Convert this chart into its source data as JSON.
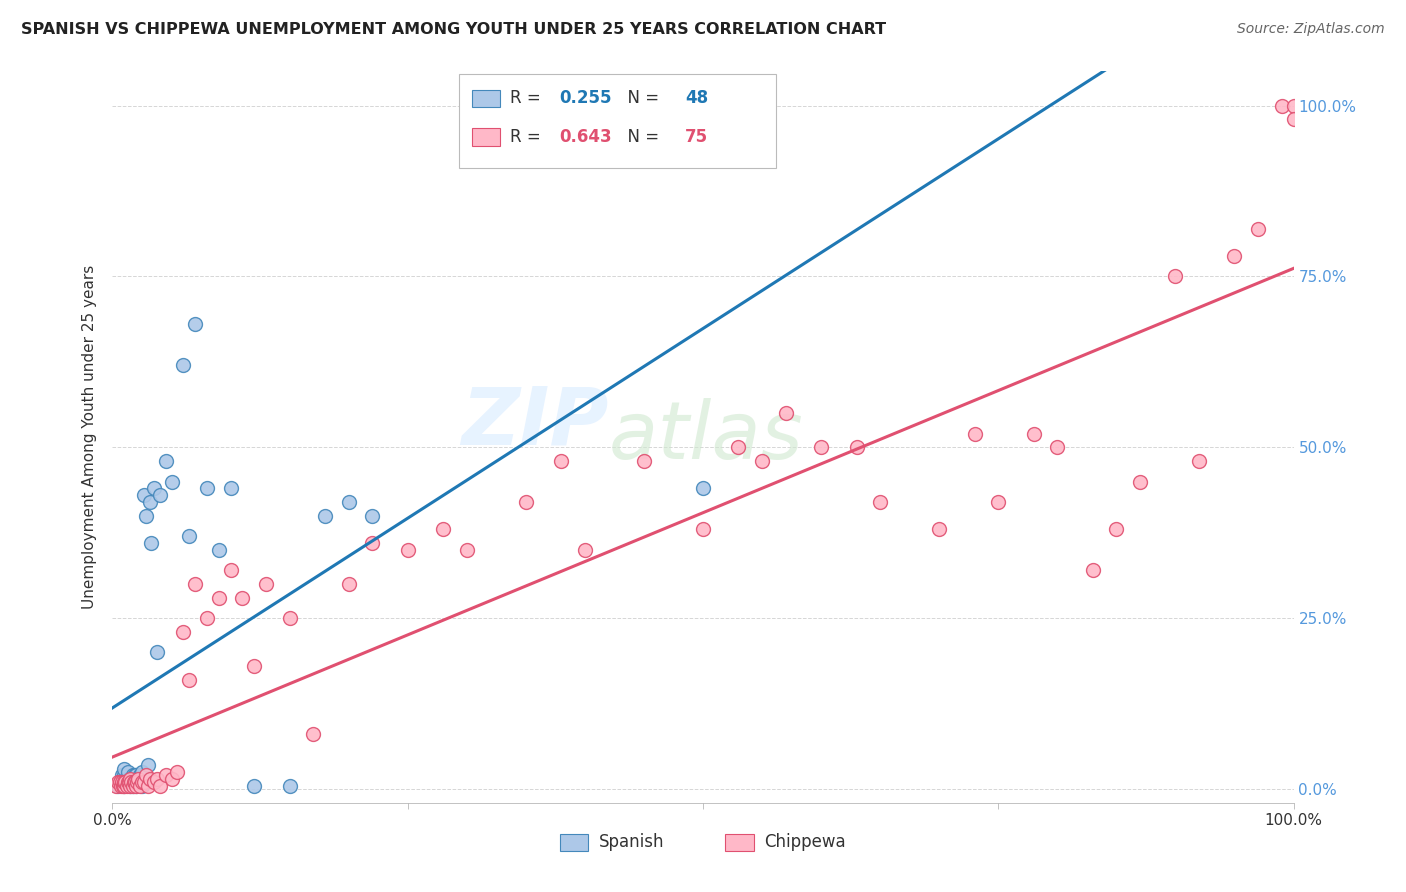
{
  "title": "SPANISH VS CHIPPEWA UNEMPLOYMENT AMONG YOUTH UNDER 25 YEARS CORRELATION CHART",
  "source": "Source: ZipAtlas.com",
  "ylabel": "Unemployment Among Youth under 25 years",
  "xlim": [
    0.0,
    1.0
  ],
  "ylim": [
    -0.02,
    1.05
  ],
  "ytick_vals": [
    0.0,
    0.25,
    0.5,
    0.75,
    1.0
  ],
  "ytick_labels": [
    "0.0%",
    "25.0%",
    "50.0%",
    "75.0%",
    "100.0%"
  ],
  "blue_line_color": "#1f78b4",
  "pink_line_color": "#e05070",
  "blue_scatter_face": "#adc8e8",
  "pink_scatter_face": "#ffb8c8",
  "blue_scatter_edge": "#4488bb",
  "pink_scatter_edge": "#e05070",
  "background_color": "#ffffff",
  "grid_color": "#cccccc",
  "right_tick_color": "#5599dd",
  "spanish_x": [
    0.005,
    0.007,
    0.008,
    0.008,
    0.009,
    0.01,
    0.01,
    0.01,
    0.012,
    0.013,
    0.013,
    0.015,
    0.015,
    0.016,
    0.017,
    0.017,
    0.018,
    0.018,
    0.019,
    0.02,
    0.02,
    0.021,
    0.022,
    0.023,
    0.025,
    0.025,
    0.027,
    0.028,
    0.03,
    0.032,
    0.033,
    0.035,
    0.038,
    0.04,
    0.045,
    0.05,
    0.06,
    0.065,
    0.07,
    0.08,
    0.09,
    0.1,
    0.12,
    0.15,
    0.18,
    0.2,
    0.22,
    0.5
  ],
  "spanish_y": [
    0.005,
    0.01,
    0.015,
    0.02,
    0.01,
    0.005,
    0.02,
    0.03,
    0.01,
    0.015,
    0.025,
    0.005,
    0.015,
    0.01,
    0.005,
    0.02,
    0.01,
    0.015,
    0.02,
    0.005,
    0.02,
    0.01,
    0.015,
    0.02,
    0.005,
    0.025,
    0.43,
    0.4,
    0.035,
    0.42,
    0.36,
    0.44,
    0.2,
    0.43,
    0.48,
    0.45,
    0.62,
    0.37,
    0.68,
    0.44,
    0.35,
    0.44,
    0.005,
    0.005,
    0.4,
    0.42,
    0.4,
    0.44
  ],
  "chippewa_x": [
    0.003,
    0.005,
    0.006,
    0.007,
    0.008,
    0.009,
    0.01,
    0.01,
    0.011,
    0.012,
    0.013,
    0.014,
    0.015,
    0.015,
    0.016,
    0.017,
    0.018,
    0.019,
    0.02,
    0.021,
    0.022,
    0.023,
    0.025,
    0.027,
    0.028,
    0.03,
    0.032,
    0.035,
    0.038,
    0.04,
    0.045,
    0.05,
    0.055,
    0.06,
    0.065,
    0.07,
    0.08,
    0.09,
    0.1,
    0.11,
    0.12,
    0.13,
    0.15,
    0.17,
    0.2,
    0.22,
    0.25,
    0.28,
    0.3,
    0.35,
    0.38,
    0.4,
    0.45,
    0.5,
    0.53,
    0.55,
    0.57,
    0.6,
    0.63,
    0.65,
    0.7,
    0.73,
    0.75,
    0.78,
    0.8,
    0.83,
    0.85,
    0.87,
    0.9,
    0.92,
    0.95,
    0.97,
    0.99,
    1.0,
    1.0
  ],
  "chippewa_y": [
    0.005,
    0.01,
    0.01,
    0.005,
    0.01,
    0.005,
    0.005,
    0.01,
    0.01,
    0.005,
    0.01,
    0.01,
    0.005,
    0.015,
    0.01,
    0.005,
    0.01,
    0.01,
    0.005,
    0.01,
    0.015,
    0.005,
    0.01,
    0.01,
    0.02,
    0.005,
    0.015,
    0.01,
    0.015,
    0.005,
    0.02,
    0.015,
    0.025,
    0.23,
    0.16,
    0.3,
    0.25,
    0.28,
    0.32,
    0.28,
    0.18,
    0.3,
    0.25,
    0.08,
    0.3,
    0.36,
    0.35,
    0.38,
    0.35,
    0.42,
    0.48,
    0.35,
    0.48,
    0.38,
    0.5,
    0.48,
    0.55,
    0.5,
    0.5,
    0.42,
    0.38,
    0.52,
    0.42,
    0.52,
    0.5,
    0.32,
    0.38,
    0.45,
    0.75,
    0.48,
    0.78,
    0.82,
    1.0,
    1.0,
    0.98
  ]
}
